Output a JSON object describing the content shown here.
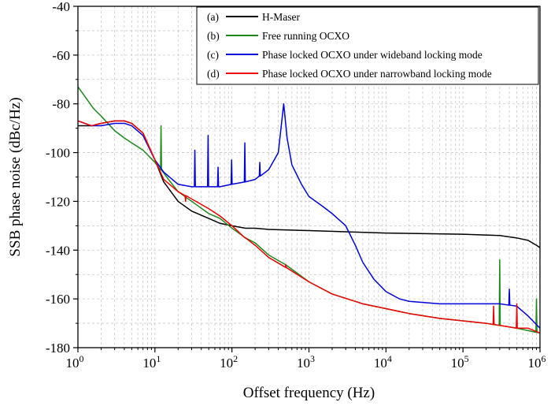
{
  "chart_data": {
    "type": "line",
    "title": "",
    "xlabel": "Offset frequency (Hz)",
    "ylabel": "SSB phase noise (dBc/Hz)",
    "xscale": "log",
    "xlim": [
      1,
      1000000
    ],
    "ylim": [
      -180,
      -40
    ],
    "x_ticks": [
      {
        "value": 1,
        "base": "10",
        "exp": "0"
      },
      {
        "value": 10,
        "base": "10",
        "exp": "1"
      },
      {
        "value": 100,
        "base": "10",
        "exp": "2"
      },
      {
        "value": 1000,
        "base": "10",
        "exp": "3"
      },
      {
        "value": 10000,
        "base": "10",
        "exp": "4"
      },
      {
        "value": 100000,
        "base": "10",
        "exp": "5"
      },
      {
        "value": 1000000,
        "base": "10",
        "exp": "6"
      }
    ],
    "y_ticks": [
      -40,
      -60,
      -80,
      -100,
      -120,
      -140,
      -160,
      -180
    ],
    "grid": true,
    "legend_position": "top-right",
    "series": [
      {
        "name": "(a)",
        "label": "H-Maser",
        "color": "#000000",
        "points": [
          [
            1,
            -89
          ],
          [
            1.5,
            -89
          ],
          [
            2,
            -88
          ],
          [
            3,
            -87
          ],
          [
            4,
            -87
          ],
          [
            5,
            -88
          ],
          [
            7,
            -92
          ],
          [
            10,
            -103
          ],
          [
            13,
            -112
          ],
          [
            20,
            -120
          ],
          [
            30,
            -124
          ],
          [
            50,
            -127
          ],
          [
            70,
            -129
          ],
          [
            100,
            -130
          ],
          [
            150,
            -131
          ],
          [
            200,
            -131
          ],
          [
            300,
            -131.5
          ],
          [
            1000,
            -132
          ],
          [
            10000,
            -133
          ],
          [
            100000,
            -133.5
          ],
          [
            300000,
            -134
          ],
          [
            500000,
            -135
          ],
          [
            700000,
            -136
          ],
          [
            900000,
            -138
          ],
          [
            1000000,
            -139
          ]
        ],
        "spikes": []
      },
      {
        "name": "(b)",
        "label": "Free running OCXO",
        "color": "#1a8a1a",
        "points": [
          [
            1,
            -73
          ],
          [
            1.3,
            -78
          ],
          [
            1.6,
            -82
          ],
          [
            2,
            -85
          ],
          [
            3,
            -91
          ],
          [
            4,
            -94
          ],
          [
            5,
            -96
          ],
          [
            7,
            -99
          ],
          [
            10,
            -104
          ],
          [
            15,
            -111
          ],
          [
            20,
            -116
          ],
          [
            30,
            -120
          ],
          [
            50,
            -125
          ],
          [
            70,
            -127
          ],
          [
            100,
            -131
          ],
          [
            150,
            -135
          ],
          [
            200,
            -137
          ],
          [
            300,
            -142
          ],
          [
            500,
            -146
          ],
          [
            1000,
            -153
          ],
          [
            2000,
            -158
          ],
          [
            5000,
            -162
          ],
          [
            10000,
            -164
          ],
          [
            20000,
            -166
          ],
          [
            50000,
            -168
          ],
          [
            100000,
            -169
          ],
          [
            200000,
            -170
          ],
          [
            500000,
            -172
          ],
          [
            700000,
            -173
          ],
          [
            1000000,
            -174
          ]
        ],
        "spikes": [
          [
            12,
            -89
          ],
          [
            300000,
            -144
          ],
          [
            900000,
            -160
          ]
        ]
      },
      {
        "name": "(c)",
        "label": "Phase locked OCXO under wideband locking mode",
        "color": "#0000dd",
        "points": [
          [
            1,
            -87
          ],
          [
            1.5,
            -89
          ],
          [
            2,
            -89
          ],
          [
            3,
            -88
          ],
          [
            4,
            -88
          ],
          [
            5,
            -89
          ],
          [
            7,
            -93
          ],
          [
            10,
            -103
          ],
          [
            13,
            -108
          ],
          [
            20,
            -113
          ],
          [
            30,
            -114
          ],
          [
            50,
            -114
          ],
          [
            70,
            -114
          ],
          [
            100,
            -113
          ],
          [
            150,
            -112
          ],
          [
            200,
            -111
          ],
          [
            300,
            -107
          ],
          [
            400,
            -100
          ],
          [
            470,
            -80
          ],
          [
            520,
            -94
          ],
          [
            600,
            -105
          ],
          [
            800,
            -113
          ],
          [
            1000,
            -118
          ],
          [
            1500,
            -122
          ],
          [
            2000,
            -125
          ],
          [
            3000,
            -130
          ],
          [
            4000,
            -138
          ],
          [
            5000,
            -145
          ],
          [
            7000,
            -152
          ],
          [
            10000,
            -157
          ],
          [
            15000,
            -160
          ],
          [
            20000,
            -161
          ],
          [
            50000,
            -162
          ],
          [
            100000,
            -162
          ],
          [
            200000,
            -162
          ],
          [
            300000,
            -162
          ],
          [
            500000,
            -163
          ],
          [
            700000,
            -167
          ],
          [
            1000000,
            -172
          ]
        ],
        "spikes": [
          [
            33,
            -99
          ],
          [
            49,
            -93
          ],
          [
            66,
            -106
          ],
          [
            99,
            -103
          ],
          [
            147,
            -96
          ],
          [
            230,
            -104
          ],
          [
            400000,
            -156
          ]
        ]
      },
      {
        "name": "(d)",
        "label": "Phase locked OCXO under narrowband locking mode",
        "color": "#ee0000",
        "points": [
          [
            1,
            -87
          ],
          [
            1.5,
            -89
          ],
          [
            2,
            -88
          ],
          [
            3,
            -87
          ],
          [
            4,
            -87
          ],
          [
            5,
            -88
          ],
          [
            7,
            -92
          ],
          [
            10,
            -103
          ],
          [
            13,
            -111
          ],
          [
            20,
            -116
          ],
          [
            30,
            -119
          ],
          [
            50,
            -123
          ],
          [
            70,
            -126
          ],
          [
            100,
            -130
          ],
          [
            150,
            -135
          ],
          [
            200,
            -138
          ],
          [
            300,
            -143
          ],
          [
            500,
            -147
          ],
          [
            1000,
            -153
          ],
          [
            2000,
            -158
          ],
          [
            5000,
            -162
          ],
          [
            10000,
            -164
          ],
          [
            20000,
            -166
          ],
          [
            50000,
            -168
          ],
          [
            100000,
            -169
          ],
          [
            200000,
            -170
          ],
          [
            500000,
            -172
          ],
          [
            700000,
            -172
          ],
          [
            1000000,
            -174
          ]
        ],
        "spikes": [
          [
            25,
            -120
          ],
          [
            150,
            -135
          ],
          [
            500,
            -146
          ],
          [
            250000,
            -163
          ],
          [
            500000,
            -162
          ]
        ]
      }
    ]
  }
}
